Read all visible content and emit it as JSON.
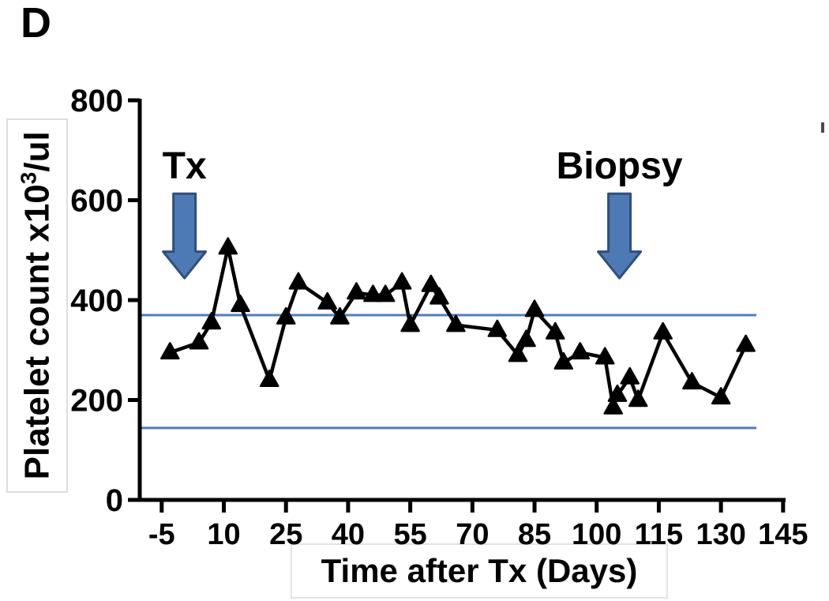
{
  "panel_label": "D",
  "chart_data": {
    "type": "line",
    "title": "",
    "xlabel": "Time after Tx (Days)",
    "ylabel": "Platelet count x10³/ul",
    "ylabel_parts": {
      "main": "Platelet count  x10",
      "sup": "3",
      "rest": "/ul"
    },
    "x": [
      -3,
      4,
      7,
      11,
      14,
      21,
      25,
      28,
      35,
      38,
      42,
      46,
      49,
      53,
      55,
      60,
      62,
      66,
      76,
      81,
      83,
      85,
      90,
      92,
      96,
      102,
      104,
      105,
      108,
      110,
      116,
      123,
      130,
      136
    ],
    "series": [
      {
        "name": "Platelet count",
        "values": [
          295,
          315,
          355,
          505,
          390,
          240,
          365,
          435,
          395,
          365,
          415,
          410,
          410,
          435,
          350,
          430,
          405,
          350,
          340,
          290,
          320,
          380,
          335,
          275,
          295,
          285,
          185,
          210,
          245,
          200,
          335,
          235,
          205,
          310
        ]
      }
    ],
    "x_ticks": [
      -5,
      10,
      25,
      40,
      55,
      70,
      85,
      100,
      115,
      130,
      145
    ],
    "y_ticks": [
      0,
      200,
      400,
      600,
      800
    ],
    "xlim": [
      -10.3,
      145.6
    ],
    "ylim": [
      0,
      800
    ],
    "grid": false,
    "legend": "none",
    "marker": "triangle-up",
    "line_color": "#000000",
    "reference_lines": {
      "values": [
        370,
        144
      ],
      "color": "#4d7ebf"
    },
    "annotations": [
      {
        "label": "Tx",
        "day": 0.5,
        "arrow_top_value": 613,
        "arrow_head_value": 497,
        "arrow_tip_value": 444
      },
      {
        "label": "Biopsy",
        "day": 105.5,
        "arrow_top_value": 613,
        "arrow_head_value": 497,
        "arrow_tip_value": 444
      }
    ],
    "arrow_fill": "#4d7ab5",
    "arrow_stroke": "#2e4f7e"
  }
}
